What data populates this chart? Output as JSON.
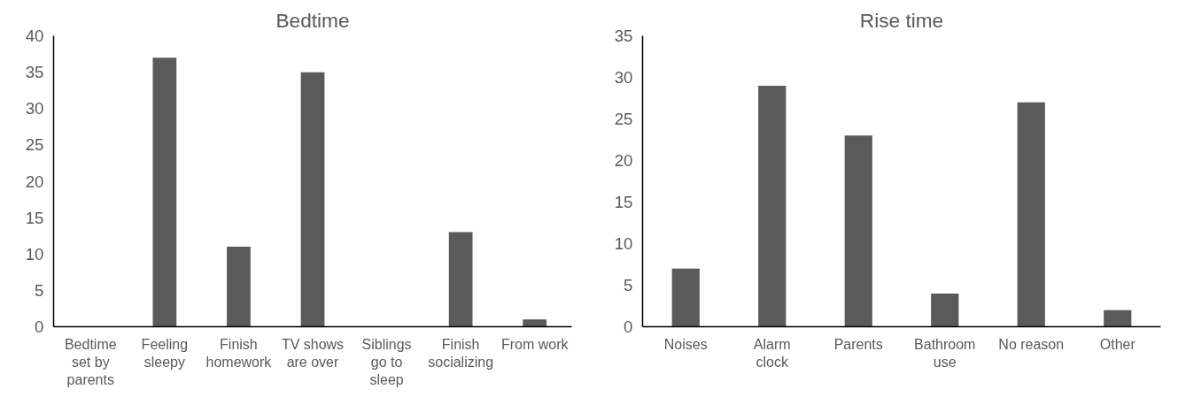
{
  "chart_data": [
    {
      "type": "bar",
      "title": "Bedtime",
      "categories": [
        "Bedtime set by parents",
        "Feeling sleepy",
        "Finish homework",
        "TV shows are over",
        "Siblings go to sleep",
        "Finish socializing",
        "From work"
      ],
      "values": [
        0,
        37,
        11,
        35,
        0,
        13,
        1
      ],
      "color": "#5a5a5a",
      "ylim": [
        0,
        40
      ],
      "yticks": [
        0,
        5,
        10,
        15,
        20,
        25,
        30,
        35,
        40
      ],
      "grid": false
    },
    {
      "type": "bar",
      "title": "Rise time",
      "categories": [
        "Noises",
        "Alarm clock",
        "Parents",
        "Bathroom use",
        "No reason",
        "Other"
      ],
      "values": [
        7,
        29,
        23,
        4,
        27,
        2
      ],
      "color": "#5a5a5a",
      "ylim": [
        0,
        35
      ],
      "yticks": [
        0,
        5,
        10,
        15,
        20,
        25,
        30,
        35
      ],
      "grid": false
    }
  ]
}
